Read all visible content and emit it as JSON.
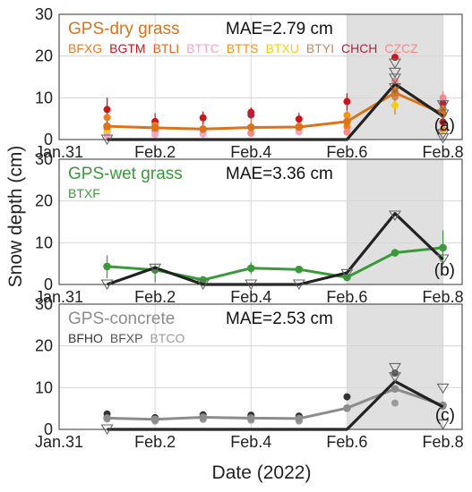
{
  "figure": {
    "xlabel": "Date (2022)",
    "ylabel": "Snow depth (cm)"
  },
  "colors": {
    "shade": "#e0e0e0",
    "grid": "#d6d6d6",
    "gps": "#222222",
    "triangle": "#666666"
  },
  "chart_data": [
    {
      "type": "line",
      "panel_label": "(a)",
      "title": "GPS-dry grass",
      "title_color": "#d9731c",
      "mae_text": "MAE=2.79 cm",
      "xlim": [
        0,
        8.4
      ],
      "ylim": [
        0,
        30
      ],
      "yticks": [
        0,
        10,
        20,
        30
      ],
      "xticks": [
        {
          "x": 0,
          "label": "Jan.31"
        },
        {
          "x": 2,
          "label": "Feb.2"
        },
        {
          "x": 4,
          "label": "Feb.4"
        },
        {
          "x": 6,
          "label": "Feb.6"
        },
        {
          "x": 8,
          "label": "Feb.8"
        }
      ],
      "shade_range": [
        6,
        8
      ],
      "x": [
        1,
        2,
        3,
        4,
        5,
        6,
        7,
        8
      ],
      "sites": [
        {
          "name": "BFXG",
          "color": "#f07a1e"
        },
        {
          "name": "BGTM",
          "color": "#c8161d"
        },
        {
          "name": "BTLI",
          "color": "#e8641e"
        },
        {
          "name": "BTTC",
          "color": "#f4a6c4"
        },
        {
          "name": "BTTS",
          "color": "#f7921e"
        },
        {
          "name": "BTXU",
          "color": "#f2cf10"
        },
        {
          "name": "BTYI",
          "color": "#c98a5a"
        },
        {
          "name": "CHCH",
          "color": "#b5213f"
        },
        {
          "name": "CZCZ",
          "color": "#f58a8a"
        }
      ],
      "series": [
        {
          "name": "GPS-dry grass",
          "role": "gps",
          "color": "#d9731c",
          "values": [
            3.2,
            2.8,
            2.5,
            2.9,
            3.0,
            4.3,
            11.2,
            6.2
          ]
        },
        {
          "role": "reference",
          "color": "#222222",
          "values": [
            0,
            0,
            0,
            0,
            0,
            0,
            13.3,
            5.6
          ]
        }
      ],
      "site_points": [
        {
          "x": 1,
          "y": 7.2,
          "color": "#c8161d",
          "err": 2.8
        },
        {
          "x": 1,
          "y": 5.3,
          "color": "#f07a1e",
          "err": 0
        },
        {
          "x": 1,
          "y": 2.6,
          "color": "#e8641e",
          "err": 0
        },
        {
          "x": 1,
          "y": 1.8,
          "color": "#f2cf10",
          "err": 0
        },
        {
          "x": 1,
          "y": 1.0,
          "color": "#f4a6c4",
          "err": 0
        },
        {
          "x": 2,
          "y": 4.3,
          "color": "#c8161d",
          "err": 2.0
        },
        {
          "x": 2,
          "y": 3.4,
          "color": "#f07a1e",
          "err": 0
        },
        {
          "x": 2,
          "y": 2.1,
          "color": "#f58a8a",
          "err": 0
        },
        {
          "x": 2,
          "y": 1.2,
          "color": "#f4a6c4",
          "err": 0
        },
        {
          "x": 3,
          "y": 5.2,
          "color": "#c8161d",
          "err": 1.5
        },
        {
          "x": 3,
          "y": 2.4,
          "color": "#f07a1e",
          "err": 0
        },
        {
          "x": 3,
          "y": 1.3,
          "color": "#f4a6c4",
          "err": 0
        },
        {
          "x": 4,
          "y": 6.5,
          "color": "#c8161d",
          "err": 1.2
        },
        {
          "x": 4,
          "y": 5.9,
          "color": "#b5213f",
          "err": 0
        },
        {
          "x": 4,
          "y": 3.0,
          "color": "#f07a1e",
          "err": 0
        },
        {
          "x": 4,
          "y": 1.5,
          "color": "#f58a8a",
          "err": 0
        },
        {
          "x": 5,
          "y": 4.9,
          "color": "#c8161d",
          "err": 1.5
        },
        {
          "x": 5,
          "y": 3.2,
          "color": "#f07a1e",
          "err": 0
        },
        {
          "x": 5,
          "y": 2.5,
          "color": "#f58a8a",
          "err": 0
        },
        {
          "x": 5,
          "y": 1.8,
          "color": "#f4a6c4",
          "err": 0
        },
        {
          "x": 6,
          "y": 9.1,
          "color": "#c8161d",
          "err": 2.0
        },
        {
          "x": 6,
          "y": 5.8,
          "color": "#f7921e",
          "err": 0
        },
        {
          "x": 6,
          "y": 4.2,
          "color": "#f2cf10",
          "err": 0
        },
        {
          "x": 6,
          "y": 3.1,
          "color": "#f07a1e",
          "err": 0
        },
        {
          "x": 6,
          "y": 1.8,
          "color": "#f58a8a",
          "err": 0
        },
        {
          "x": 7,
          "y": 19.7,
          "color": "#c8161d",
          "err": 0
        },
        {
          "x": 7,
          "y": 14.0,
          "color": "#f58a8a",
          "err": 0
        },
        {
          "x": 7,
          "y": 12.3,
          "color": "#f07a1e",
          "err": 0
        },
        {
          "x": 7,
          "y": 11.0,
          "color": "#f7921e",
          "err": 0
        },
        {
          "x": 7,
          "y": 10.2,
          "color": "#c98a5a",
          "err": 0
        },
        {
          "x": 7,
          "y": 8.2,
          "color": "#f2cf10",
          "err": 0
        },
        {
          "x": 8,
          "y": 10.0,
          "color": "#f58a8a",
          "err": 1.5
        },
        {
          "x": 8,
          "y": 8.6,
          "color": "#b5213f",
          "err": 0
        },
        {
          "x": 8,
          "y": 7.4,
          "color": "#f07a1e",
          "err": 0
        },
        {
          "x": 8,
          "y": 4.2,
          "color": "#c8161d",
          "err": 0
        },
        {
          "x": 8,
          "y": 2.4,
          "color": "#f7921e",
          "err": 0
        }
      ],
      "triangles": [
        {
          "x": 1,
          "y": 0
        },
        {
          "x": 7,
          "y": 18.2
        },
        {
          "x": 7,
          "y": 16.0
        },
        {
          "x": 7,
          "y": 14.6
        },
        {
          "x": 7,
          "y": 12.3
        },
        {
          "x": 8,
          "y": 8.2
        },
        {
          "x": 8,
          "y": 6.0
        },
        {
          "x": 8,
          "y": 1.3
        },
        {
          "x": 8,
          "y": 0.3
        }
      ],
      "errorbars": [
        {
          "x": 1,
          "lo": 3.2,
          "hi": 10.0,
          "color": "#c8161d"
        },
        {
          "x": 3,
          "lo": 2.5,
          "hi": 6.7,
          "color": "#d9731c"
        },
        {
          "x": 4,
          "lo": 3.0,
          "hi": 7.7,
          "color": "#d9731c"
        },
        {
          "x": 6,
          "lo": 2.5,
          "hi": 11.0,
          "color": "#d9731c"
        },
        {
          "x": 7,
          "lo": 6.0,
          "hi": 15.0,
          "color": "#d9731c"
        },
        {
          "x": 8,
          "lo": 2.0,
          "hi": 11.5,
          "color": "#d9731c"
        }
      ]
    },
    {
      "type": "line",
      "panel_label": "(b)",
      "title": "GPS-wet grass",
      "title_color": "#3a9a3a",
      "mae_text": "MAE=3.36 cm",
      "xlim": [
        0,
        8.4
      ],
      "ylim": [
        0,
        30
      ],
      "yticks": [
        0,
        10,
        20,
        30
      ],
      "xticks": [
        {
          "x": 0,
          "label": "Jan.31"
        },
        {
          "x": 2,
          "label": "Feb.2"
        },
        {
          "x": 4,
          "label": "Feb.4"
        },
        {
          "x": 6,
          "label": "Feb.6"
        },
        {
          "x": 8,
          "label": "Feb.8"
        }
      ],
      "shade_range": [
        6,
        8
      ],
      "x": [
        1,
        2,
        3,
        4,
        5,
        6,
        7,
        8
      ],
      "sites": [
        {
          "name": "BTXF",
          "color": "#3a9a3a"
        }
      ],
      "series": [
        {
          "name": "GPS-wet grass",
          "role": "gps",
          "color": "#3a9a3a",
          "values": [
            4.3,
            3.5,
            1.1,
            3.9,
            3.6,
            1.7,
            7.6,
            8.8
          ]
        },
        {
          "role": "reference",
          "color": "#222222",
          "values": [
            0,
            4.0,
            0,
            0,
            0,
            2.8,
            17.0,
            6.0
          ]
        }
      ],
      "site_points": [],
      "triangles": [
        {
          "x": 1,
          "y": 0
        },
        {
          "x": 2,
          "y": 3.8
        },
        {
          "x": 3,
          "y": 0
        },
        {
          "x": 4,
          "y": 0
        },
        {
          "x": 5,
          "y": 0
        },
        {
          "x": 6,
          "y": 2.5
        },
        {
          "x": 7,
          "y": 16.5
        },
        {
          "x": 8,
          "y": 6.0
        }
      ],
      "errorbars": [
        {
          "x": 1,
          "lo": 1.5,
          "hi": 7.0,
          "color": "#3a9a3a"
        },
        {
          "x": 2,
          "lo": 0.5,
          "hi": 5.0,
          "color": "#3a9a3a"
        },
        {
          "x": 4,
          "lo": 2.5,
          "hi": 5.3,
          "color": "#3a9a3a"
        },
        {
          "x": 8,
          "lo": 5.0,
          "hi": 13.0,
          "color": "#3a9a3a"
        }
      ]
    },
    {
      "type": "line",
      "panel_label": "(c)",
      "title": "GPS-concrete",
      "title_color": "#8c8c8c",
      "mae_text": "MAE=2.53 cm",
      "xlim": [
        0,
        8.4
      ],
      "ylim": [
        0,
        30
      ],
      "yticks": [
        0,
        10,
        20,
        30
      ],
      "xticks": [
        {
          "x": 0,
          "label": "Jan.31"
        },
        {
          "x": 2,
          "label": "Feb.2"
        },
        {
          "x": 4,
          "label": "Feb.4"
        },
        {
          "x": 6,
          "label": "Feb.6"
        },
        {
          "x": 8,
          "label": "Feb.8"
        }
      ],
      "shade_range": [
        6,
        8
      ],
      "x": [
        1,
        2,
        3,
        4,
        5,
        6,
        7,
        8
      ],
      "sites": [
        {
          "name": "BFHO",
          "color": "#333333"
        },
        {
          "name": "BFXP",
          "color": "#555555"
        },
        {
          "name": "BTCO",
          "color": "#9a9a9a"
        }
      ],
      "series": [
        {
          "name": "GPS-concrete",
          "role": "gps",
          "color": "#8c8c8c",
          "values": [
            2.7,
            2.4,
            2.9,
            2.7,
            2.6,
            5.1,
            9.7,
            5.8
          ]
        },
        {
          "role": "reference",
          "color": "#222222",
          "values": [
            0,
            0,
            0,
            0,
            0,
            0,
            11.5,
            5.4
          ]
        }
      ],
      "site_points": [
        {
          "x": 1,
          "y": 3.7,
          "color": "#333333",
          "err": 0
        },
        {
          "x": 1,
          "y": 2.5,
          "color": "#9a9a9a",
          "err": 0
        },
        {
          "x": 2,
          "y": 2.8,
          "color": "#333333",
          "err": 0
        },
        {
          "x": 2,
          "y": 2.0,
          "color": "#9a9a9a",
          "err": 0
        },
        {
          "x": 3,
          "y": 3.5,
          "color": "#333333",
          "err": 0
        },
        {
          "x": 3,
          "y": 2.4,
          "color": "#9a9a9a",
          "err": 0
        },
        {
          "x": 4,
          "y": 3.4,
          "color": "#333333",
          "err": 0
        },
        {
          "x": 4,
          "y": 2.2,
          "color": "#9a9a9a",
          "err": 0
        },
        {
          "x": 5,
          "y": 3.2,
          "color": "#333333",
          "err": 0
        },
        {
          "x": 5,
          "y": 2.0,
          "color": "#9a9a9a",
          "err": 0
        },
        {
          "x": 6,
          "y": 7.8,
          "color": "#333333",
          "err": 0
        },
        {
          "x": 6,
          "y": 5.0,
          "color": "#9a9a9a",
          "err": 0
        },
        {
          "x": 7,
          "y": 13.5,
          "color": "#555555",
          "err": 0
        },
        {
          "x": 7,
          "y": 6.3,
          "color": "#9a9a9a",
          "err": 0
        },
        {
          "x": 8,
          "y": 5.6,
          "color": "#555555",
          "err": 0
        }
      ],
      "triangles": [
        {
          "x": 1,
          "y": 0
        },
        {
          "x": 7,
          "y": 14.7
        },
        {
          "x": 7,
          "y": 12.5
        },
        {
          "x": 8,
          "y": 9.8
        },
        {
          "x": 8,
          "y": 1.2
        }
      ],
      "errorbars": []
    }
  ]
}
